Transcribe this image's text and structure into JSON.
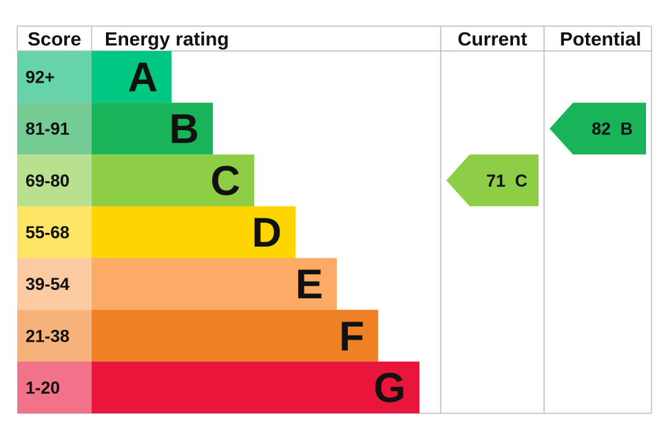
{
  "headers": {
    "score": "Score",
    "energy_rating": "Energy rating",
    "current": "Current",
    "potential": "Potential"
  },
  "chart_data": {
    "type": "bar",
    "bands": [
      {
        "letter": "A",
        "range": "92+",
        "color": "#00c781",
        "score_color": "#66d3ab"
      },
      {
        "letter": "B",
        "range": "81-91",
        "color": "#19b459",
        "score_color": "#74cc94"
      },
      {
        "letter": "C",
        "range": "69-80",
        "color": "#8dce46",
        "score_color": "#b9e08e"
      },
      {
        "letter": "D",
        "range": "55-68",
        "color": "#ffd500",
        "score_color": "#ffe566"
      },
      {
        "letter": "E",
        "range": "39-54",
        "color": "#fcaa65",
        "score_color": "#fdcba1"
      },
      {
        "letter": "F",
        "range": "21-38",
        "color": "#ef8023",
        "score_color": "#f5b27b"
      },
      {
        "letter": "G",
        "range": "1-20",
        "color": "#e9153b",
        "score_color": "#f27389"
      }
    ],
    "current": {
      "value": 71,
      "band": "C",
      "label": "71  C",
      "color": "#8dce46"
    },
    "potential": {
      "value": 82,
      "band": "B",
      "label": "82  B",
      "color": "#19b459"
    }
  }
}
